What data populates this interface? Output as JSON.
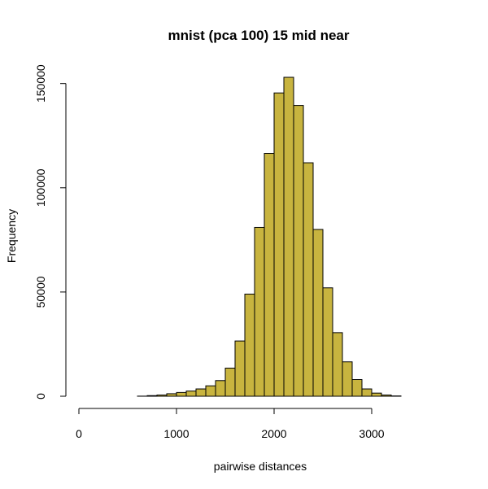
{
  "chart_data": {
    "type": "bar",
    "title": "mnist (pca 100) 15 mid near",
    "xlabel": "pairwise distances",
    "ylabel": "Frequency",
    "bar_color": "#C8B43F",
    "bin_width": 100,
    "x_ticks": [
      0,
      1000,
      2000,
      3000
    ],
    "y_ticks": [
      0,
      50000,
      100000,
      150000
    ],
    "xlim": [
      0,
      3700
    ],
    "ylim": [
      0,
      153000
    ],
    "bins": [
      {
        "x0": 0,
        "x1": 100,
        "count": 0
      },
      {
        "x0": 100,
        "x1": 200,
        "count": 0
      },
      {
        "x0": 200,
        "x1": 300,
        "count": 0
      },
      {
        "x0": 300,
        "x1": 400,
        "count": 0
      },
      {
        "x0": 400,
        "x1": 500,
        "count": 0
      },
      {
        "x0": 500,
        "x1": 600,
        "count": 0
      },
      {
        "x0": 600,
        "x1": 700,
        "count": 50
      },
      {
        "x0": 700,
        "x1": 800,
        "count": 300
      },
      {
        "x0": 800,
        "x1": 900,
        "count": 600
      },
      {
        "x0": 900,
        "x1": 1000,
        "count": 1200
      },
      {
        "x0": 1000,
        "x1": 1100,
        "count": 1800
      },
      {
        "x0": 1100,
        "x1": 1200,
        "count": 2500
      },
      {
        "x0": 1200,
        "x1": 1300,
        "count": 3500
      },
      {
        "x0": 1300,
        "x1": 1400,
        "count": 5000
      },
      {
        "x0": 1400,
        "x1": 1500,
        "count": 7500
      },
      {
        "x0": 1500,
        "x1": 1600,
        "count": 13500
      },
      {
        "x0": 1600,
        "x1": 1700,
        "count": 26500
      },
      {
        "x0": 1700,
        "x1": 1800,
        "count": 49000
      },
      {
        "x0": 1800,
        "x1": 1900,
        "count": 81000
      },
      {
        "x0": 1900,
        "x1": 2000,
        "count": 116500
      },
      {
        "x0": 2000,
        "x1": 2100,
        "count": 145500
      },
      {
        "x0": 2100,
        "x1": 2200,
        "count": 153000
      },
      {
        "x0": 2200,
        "x1": 2300,
        "count": 139500
      },
      {
        "x0": 2300,
        "x1": 2400,
        "count": 112000
      },
      {
        "x0": 2400,
        "x1": 2500,
        "count": 80000
      },
      {
        "x0": 2500,
        "x1": 2600,
        "count": 52000
      },
      {
        "x0": 2600,
        "x1": 2700,
        "count": 30500
      },
      {
        "x0": 2700,
        "x1": 2800,
        "count": 16500
      },
      {
        "x0": 2800,
        "x1": 2900,
        "count": 8000
      },
      {
        "x0": 2900,
        "x1": 3000,
        "count": 3500
      },
      {
        "x0": 3000,
        "x1": 3100,
        "count": 1500
      },
      {
        "x0": 3100,
        "x1": 3200,
        "count": 600
      },
      {
        "x0": 3200,
        "x1": 3300,
        "count": 150
      },
      {
        "x0": 3300,
        "x1": 3400,
        "count": 0
      },
      {
        "x0": 3400,
        "x1": 3500,
        "count": 0
      },
      {
        "x0": 3500,
        "x1": 3600,
        "count": 0
      },
      {
        "x0": 3600,
        "x1": 3700,
        "count": 0
      }
    ]
  }
}
